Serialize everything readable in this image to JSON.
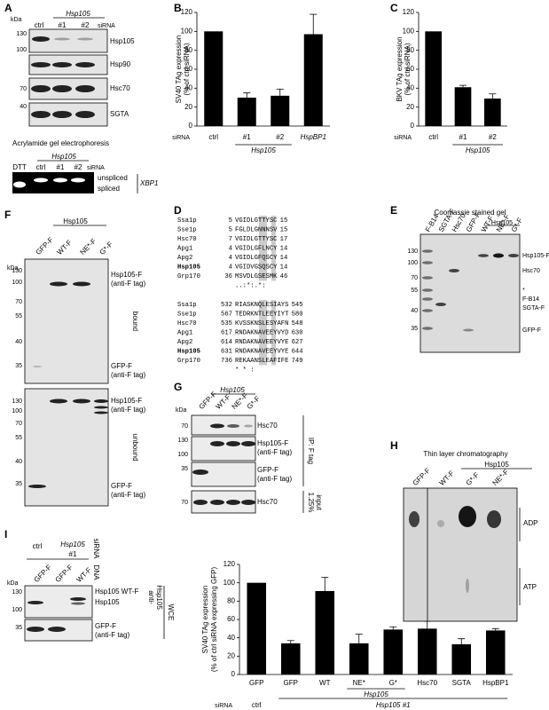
{
  "chart_data": [
    {
      "type": "bar",
      "y_label": [
        "SV40 TAg expression",
        "(% of ctrl siRNA)"
      ],
      "categories": [
        "ctrl",
        "#1",
        "#2",
        "HspBP1"
      ],
      "values": [
        100,
        30,
        32,
        97
      ],
      "errors": [
        null,
        5,
        7,
        21
      ],
      "ylim": [
        0,
        120
      ],
      "yticks": [
        0,
        20,
        40,
        60,
        80,
        100,
        120
      ],
      "color": "#000000",
      "row_label": "siRNA",
      "group_label": "Hsp105"
    },
    {
      "type": "bar",
      "y_label": [
        "BKV TAg expression",
        "(% of ctrl siRNA)"
      ],
      "categories": [
        "ctrl",
        "#1",
        "#2"
      ],
      "values": [
        100,
        41,
        29
      ],
      "errors": [
        null,
        2,
        5
      ],
      "ylim": [
        0,
        120
      ],
      "yticks": [
        0,
        20,
        40,
        60,
        80,
        100,
        120
      ],
      "color": "#000000",
      "row_label": "siRNA",
      "group_label": "Hsp105"
    },
    {
      "type": "bar",
      "y_label": [
        "SV40 TAg expression",
        "(% of ctrl siRNA expressing GFP)"
      ],
      "categories": [
        "GFP",
        "GFP",
        "WT",
        "NE*",
        "G*",
        "Hsc70",
        "SGTA",
        "HspBP1"
      ],
      "values": [
        100,
        34,
        91,
        34,
        49,
        50,
        33,
        48
      ],
      "errors": [
        null,
        3,
        15,
        10,
        3,
        8,
        6,
        2
      ],
      "ylim": [
        0,
        120
      ],
      "yticks": [
        0,
        20,
        40,
        60,
        80,
        100,
        120
      ],
      "color": "#000000",
      "row_label": "siRNA",
      "row_values": [
        "ctrl",
        "Hsp105 #1"
      ],
      "group_label": "Hsp105"
    }
  ],
  "panel_labels": [
    "A",
    "B",
    "C",
    "D",
    "E",
    "F",
    "G",
    "H",
    "I"
  ],
  "a": {
    "kda": "kDa",
    "header": "Hsp105",
    "lanes": [
      "ctrl",
      "#1",
      "#2"
    ],
    "sirna": "siRNA",
    "markers": [
      "130",
      "100",
      "70",
      "40"
    ],
    "bands": [
      "Hsp105",
      "Hsp90",
      "Hsc70",
      "SGTA"
    ],
    "gel_title": "Acrylamide gel electrophoresis",
    "gel_header": "Hsp105",
    "gel_lanes": [
      "DTT",
      "ctrl",
      "#1",
      "#2"
    ],
    "gel_sirna": "siRNA",
    "gel_bands": [
      "unspliced",
      "spliced"
    ],
    "gene": "XBP1"
  },
  "d": {
    "block1": [
      [
        "Ssa1p",
        "5",
        "VGIDLGTTYSC",
        "15"
      ],
      [
        "Sse1p",
        "5",
        "FGLDLGNNNSV",
        "15"
      ],
      [
        "Hsc70",
        "7",
        "VGIDLGTTYSC",
        "17"
      ],
      [
        "Apg1",
        "4",
        "VGIDLGFLNCY",
        "14"
      ],
      [
        "Apg2",
        "4",
        "VGIDLGFQSCY",
        "14"
      ],
      [
        "Hsp105",
        "4",
        "VGIDVGSQSCY",
        "14"
      ],
      [
        "Grp170",
        "36",
        "MSVDLGSESMK",
        "46"
      ]
    ],
    "consensus1": "..:*:.*:",
    "block2": [
      [
        "Ssa1p",
        "532",
        "RIASKNQLESIAYS",
        "545"
      ],
      [
        "Sse1p",
        "567",
        "TEDRKNTLEEYIYT",
        "580"
      ],
      [
        "Hsc70",
        "535",
        "KVSSKNSLESYAFN",
        "548"
      ],
      [
        "Apg1",
        "617",
        "RNDAKNAVEEYVYD",
        "630"
      ],
      [
        "Apg2",
        "614",
        "RNDAKNAVEEYVYE",
        "627"
      ],
      [
        "Hsp105",
        "631",
        "RNDAKNAVEEYVYE",
        "644"
      ],
      [
        "Grp170",
        "736",
        "REKAANSLEAFIFE",
        "749"
      ]
    ],
    "consensus2": "*  *     :"
  },
  "e": {
    "title": "Coomassie stained gel",
    "header": "Hsp105",
    "lanes": [
      "F-B14",
      "SGTA-F",
      "Hsc70",
      "GFP-F",
      "WT-F",
      "NE*-F",
      "G*-F"
    ],
    "markers": [
      "130",
      "100",
      "70",
      "55",
      "40",
      "35"
    ],
    "bands": [
      "Hsp105-F",
      "Hsc70",
      "*",
      "F-B14",
      "SGTA-F",
      "GFP-F"
    ]
  },
  "f": {
    "header": "Hsp105",
    "lanes": [
      "GFP-F",
      "WT-F",
      "NE*-F",
      "G*-F"
    ],
    "kda": "kDa",
    "markers": [
      "130",
      "100",
      "70",
      "55",
      "40",
      "35"
    ],
    "band_labels": [
      "Hsp105-F",
      "(anti-F tag)",
      "GFP-F",
      "(anti-F tag)"
    ],
    "bound": "bound",
    "unbound": "unbound"
  },
  "g": {
    "header": "Hsp105",
    "lanes": [
      "GFP-F",
      "WT-F",
      "NE*-F",
      "G*-F"
    ],
    "kda": "kDa",
    "markers": [
      "70",
      "130",
      "100",
      "35",
      "70"
    ],
    "bands": [
      "Hsc70",
      "Hsp105-F",
      "(anti-F tag)",
      "GFP-F",
      "(anti-F tag)",
      "Hsc70"
    ],
    "ip": "IP: F tag",
    "input": [
      "1.25%",
      "input"
    ]
  },
  "h": {
    "title": "Thin layer chromatography",
    "header": "Hsp105",
    "lanes": [
      "GFP-F",
      "WT-F",
      "G*-F",
      "NE*-F"
    ],
    "spots": [
      "ADP",
      "ATP"
    ]
  },
  "i": {
    "ctrl": "ctrl",
    "header": "Hsp105",
    "sub": "#1",
    "lanes": [
      "GFP-F",
      "GFP-F",
      "WT-F"
    ],
    "sirna": "siRNA",
    "dna": "DNA",
    "kda": "kDa",
    "markers": [
      "130",
      "100",
      "35"
    ],
    "bands": [
      "Hsp105 WT-F",
      "Hsp105",
      "GFP-F",
      "(anti-F tag)"
    ],
    "antibody": [
      "anti-",
      "Hsp105"
    ],
    "wce": "WCE"
  }
}
